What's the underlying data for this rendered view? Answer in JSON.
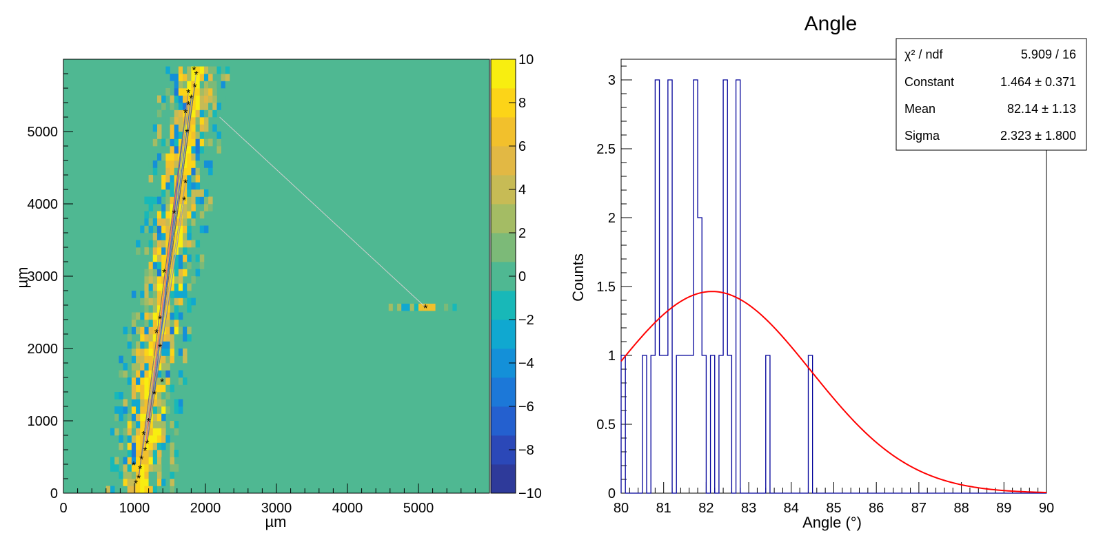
{
  "chart_data": [
    {
      "type": "heatmap",
      "title": "",
      "xlabel": "µm",
      "ylabel": "µm",
      "xlim": [
        0,
        6000
      ],
      "ylim": [
        0,
        6000
      ],
      "x_ticks": [
        "0",
        "1000",
        "2000",
        "3000",
        "4000",
        "5000"
      ],
      "y_ticks": [
        "0",
        "1000",
        "2000",
        "3000",
        "4000",
        "5000"
      ],
      "zlim": [
        -10,
        10
      ],
      "colorbar_ticks": [
        "10",
        "8",
        "6",
        "4",
        "2",
        "0",
        "−2",
        "−4",
        "−6",
        "−8",
        "−10"
      ],
      "band": [
        {
          "y": 150,
          "x": 1100
        },
        {
          "y": 1000,
          "x": 1180
        },
        {
          "y": 2000,
          "x": 1300
        },
        {
          "y": 3000,
          "x": 1450
        },
        {
          "y": 4000,
          "x": 1620
        },
        {
          "y": 5000,
          "x": 1760
        },
        {
          "y": 5900,
          "x": 1880
        }
      ],
      "hits": [
        {
          "x": 1020,
          "y": 150
        },
        {
          "x": 1060,
          "y": 220
        },
        {
          "x": 1080,
          "y": 350
        },
        {
          "x": 1100,
          "y": 480
        },
        {
          "x": 1150,
          "y": 600
        },
        {
          "x": 1180,
          "y": 700
        },
        {
          "x": 990,
          "y": 400
        },
        {
          "x": 1130,
          "y": 820
        },
        {
          "x": 1200,
          "y": 1000
        },
        {
          "x": 1280,
          "y": 1380
        },
        {
          "x": 1390,
          "y": 1550
        },
        {
          "x": 1360,
          "y": 2030
        },
        {
          "x": 1310,
          "y": 2230
        },
        {
          "x": 1360,
          "y": 2420
        },
        {
          "x": 1420,
          "y": 3060
        },
        {
          "x": 1560,
          "y": 3880
        },
        {
          "x": 1700,
          "y": 4060
        },
        {
          "x": 1720,
          "y": 4300
        },
        {
          "x": 1740,
          "y": 5000
        },
        {
          "x": 1720,
          "y": 5270
        },
        {
          "x": 1760,
          "y": 5380
        },
        {
          "x": 1800,
          "y": 5470
        },
        {
          "x": 1850,
          "y": 5630
        },
        {
          "x": 1870,
          "y": 5800
        },
        {
          "x": 1760,
          "y": 5550
        },
        {
          "x": 1840,
          "y": 5860
        },
        {
          "x": 5100,
          "y": 2570
        }
      ],
      "outlier_cells": {
        "y": 2520,
        "x_from": 4580,
        "x_to": 5500
      },
      "connector": {
        "from": [
          2200,
          5200
        ],
        "to": [
          5100,
          2570
        ]
      }
    },
    {
      "type": "histogram",
      "title": "Angle",
      "xlabel": "Angle (°)",
      "ylabel": "Counts",
      "xlim": [
        80,
        90
      ],
      "ylim": [
        0,
        3.15
      ],
      "x_ticks": [
        "80",
        "81",
        "82",
        "83",
        "84",
        "85",
        "86",
        "87",
        "88",
        "89",
        "90"
      ],
      "y_ticks": [
        "0",
        "0.5",
        "1",
        "1.5",
        "2",
        "2.5",
        "3"
      ],
      "bin_width": 0.1,
      "bins": [
        {
          "x": 80.0,
          "count": 1
        },
        {
          "x": 80.1,
          "count": 0
        },
        {
          "x": 80.2,
          "count": 0
        },
        {
          "x": 80.3,
          "count": 0
        },
        {
          "x": 80.4,
          "count": 0
        },
        {
          "x": 80.5,
          "count": 1
        },
        {
          "x": 80.6,
          "count": 0
        },
        {
          "x": 80.7,
          "count": 1
        },
        {
          "x": 80.8,
          "count": 3
        },
        {
          "x": 80.9,
          "count": 1
        },
        {
          "x": 81.0,
          "count": 1
        },
        {
          "x": 81.1,
          "count": 3
        },
        {
          "x": 81.2,
          "count": 0
        },
        {
          "x": 81.3,
          "count": 1
        },
        {
          "x": 81.4,
          "count": 1
        },
        {
          "x": 81.5,
          "count": 1
        },
        {
          "x": 81.6,
          "count": 1
        },
        {
          "x": 81.7,
          "count": 3
        },
        {
          "x": 81.8,
          "count": 2
        },
        {
          "x": 81.9,
          "count": 1
        },
        {
          "x": 82.0,
          "count": 0
        },
        {
          "x": 82.1,
          "count": 1
        },
        {
          "x": 82.2,
          "count": 0
        },
        {
          "x": 82.3,
          "count": 1
        },
        {
          "x": 82.4,
          "count": 3
        },
        {
          "x": 82.5,
          "count": 1
        },
        {
          "x": 82.6,
          "count": 0
        },
        {
          "x": 82.7,
          "count": 3
        },
        {
          "x": 82.8,
          "count": 0
        },
        {
          "x": 83.4,
          "count": 1
        },
        {
          "x": 84.4,
          "count": 1
        }
      ],
      "fit": {
        "function": "gaus",
        "constant": 1.464,
        "mean": 82.14,
        "sigma": 2.323
      },
      "fit_color": "#ff0000",
      "hist_color": "#000099",
      "stats": [
        {
          "label": "χ² / ndf",
          "value": "5.909 / 16"
        },
        {
          "label": "Constant",
          "value": "1.464 ± 0.371"
        },
        {
          "label": "Mean",
          "value": "82.14 ± 1.13"
        },
        {
          "label": "Sigma",
          "value": "2.323 ± 1.800"
        }
      ]
    }
  ]
}
